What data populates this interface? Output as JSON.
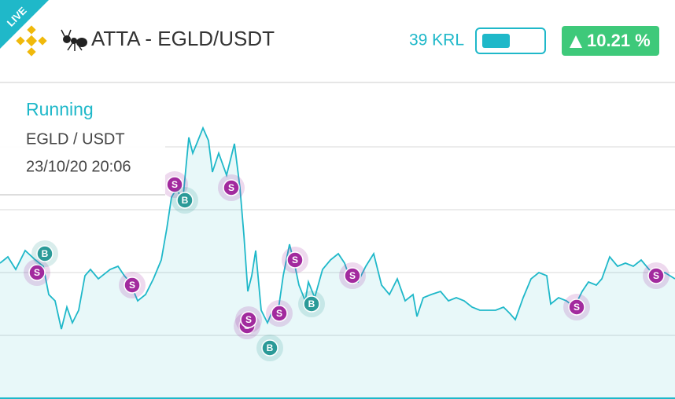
{
  "header": {
    "badge": "LIVE",
    "title": "ATTA - EGLD/USDT",
    "balance": "39 KRL",
    "change": "10.21 %"
  },
  "info": {
    "status": "Running",
    "pair": "EGLD / USDT",
    "date": "23/10/20 20:06"
  },
  "chart_data": {
    "type": "line",
    "x": [
      0,
      10,
      20,
      32,
      45,
      55,
      62,
      70,
      78,
      85,
      92,
      100,
      108,
      115,
      125,
      140,
      150,
      158,
      165,
      175,
      185,
      195,
      205,
      212,
      218,
      225,
      232,
      240,
      245,
      250,
      258,
      265,
      270,
      278,
      288,
      298,
      305,
      310,
      315,
      320,
      325,
      332,
      340,
      345,
      352,
      360,
      368,
      375,
      380,
      388,
      392,
      400,
      410,
      420,
      430,
      438,
      445,
      455,
      465,
      475,
      485,
      495,
      505,
      515,
      525,
      530,
      538,
      548,
      560,
      570,
      580,
      590,
      600,
      610,
      620,
      630,
      640,
      648,
      655,
      665,
      675,
      685,
      695,
      700,
      710,
      720,
      730,
      740,
      748,
      758,
      765,
      775,
      785,
      795,
      805,
      815,
      825,
      835,
      845,
      858
    ],
    "series": [
      {
        "color": "#1fb8c9",
        "values": [
          43,
          45,
          41,
          47,
          44,
          42,
          33,
          31,
          22,
          29,
          24,
          28,
          39,
          41,
          38,
          41,
          42,
          39,
          37,
          31,
          33,
          38,
          44,
          54,
          64,
          67,
          62,
          83,
          78,
          81,
          86,
          82,
          72,
          78,
          71,
          81,
          67,
          52,
          34,
          39,
          47,
          28,
          24,
          27,
          25,
          39,
          49,
          42,
          36,
          31,
          37,
          32,
          41,
          44,
          46,
          43,
          38,
          37,
          42,
          46,
          36,
          33,
          38,
          31,
          33,
          26,
          32,
          33,
          34,
          31,
          32,
          31,
          29,
          28,
          28,
          28,
          29,
          27,
          25,
          32,
          38,
          40,
          39,
          30,
          32,
          31,
          29,
          34,
          37,
          36,
          38,
          45,
          42,
          43,
          42,
          44,
          41,
          39,
          40,
          38
        ]
      }
    ],
    "xlim": [
      0,
      858
    ],
    "ylim": [
      0,
      100
    ],
    "yticks": [
      20,
      40,
      60,
      80
    ],
    "grid": true,
    "trades": [
      {
        "side": "S",
        "x": 47,
        "y": 40
      },
      {
        "side": "B",
        "x": 57,
        "y": 46
      },
      {
        "side": "S",
        "x": 168,
        "y": 36
      },
      {
        "side": "S",
        "x": 222,
        "y": 68
      },
      {
        "side": "B",
        "x": 235,
        "y": 63
      },
      {
        "side": "S",
        "x": 294,
        "y": 67
      },
      {
        "side": "S",
        "x": 314,
        "y": 23
      },
      {
        "side": "S",
        "x": 316,
        "y": 25
      },
      {
        "side": "B",
        "x": 343,
        "y": 16
      },
      {
        "side": "S",
        "x": 355,
        "y": 27
      },
      {
        "side": "S",
        "x": 375,
        "y": 44
      },
      {
        "side": "B",
        "x": 396,
        "y": 30
      },
      {
        "side": "S",
        "x": 448,
        "y": 39
      },
      {
        "side": "S",
        "x": 733,
        "y": 29
      },
      {
        "side": "S",
        "x": 834,
        "y": 39
      }
    ],
    "trade_colors": {
      "S": "#a22a9e",
      "B": "#2b9a98"
    }
  }
}
